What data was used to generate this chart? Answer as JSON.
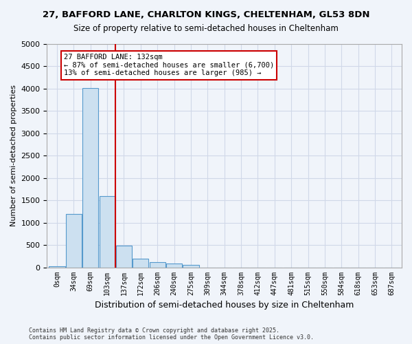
{
  "title_line1": "27, BAFFORD LANE, CHARLTON KINGS, CHELTENHAM, GL53 8DN",
  "title_line2": "Size of property relative to semi-detached houses in Cheltenham",
  "xlabel": "Distribution of semi-detached houses by size in Cheltenham",
  "ylabel": "Number of semi-detached properties",
  "bins": [
    "0sqm",
    "34sqm",
    "69sqm",
    "103sqm",
    "137sqm",
    "172sqm",
    "206sqm",
    "240sqm",
    "275sqm",
    "309sqm",
    "344sqm",
    "378sqm",
    "412sqm",
    "447sqm",
    "481sqm",
    "515sqm",
    "550sqm",
    "584sqm",
    "618sqm",
    "653sqm",
    "687sqm"
  ],
  "values": [
    20,
    1200,
    4020,
    1600,
    480,
    200,
    120,
    80,
    50,
    0,
    0,
    0,
    0,
    0,
    0,
    0,
    0,
    0,
    0,
    0,
    0
  ],
  "bar_color": "#cce0f0",
  "bar_edge_color": "#5599cc",
  "vline_pos": 3.5,
  "vline_color": "#cc0000",
  "annotation_text": "27 BAFFORD LANE: 132sqm\n← 87% of semi-detached houses are smaller (6,700)\n13% of semi-detached houses are larger (985) →",
  "annotation_box_color": "#ffffff",
  "annotation_box_edge_color": "#cc0000",
  "ylim": [
    0,
    5000
  ],
  "yticks": [
    0,
    500,
    1000,
    1500,
    2000,
    2500,
    3000,
    3500,
    4000,
    4500,
    5000
  ],
  "grid_color": "#d0d8e8",
  "footnote": "Contains HM Land Registry data © Crown copyright and database right 2025.\nContains public sector information licensed under the Open Government Licence v3.0.",
  "bg_color": "#f0f4fa"
}
